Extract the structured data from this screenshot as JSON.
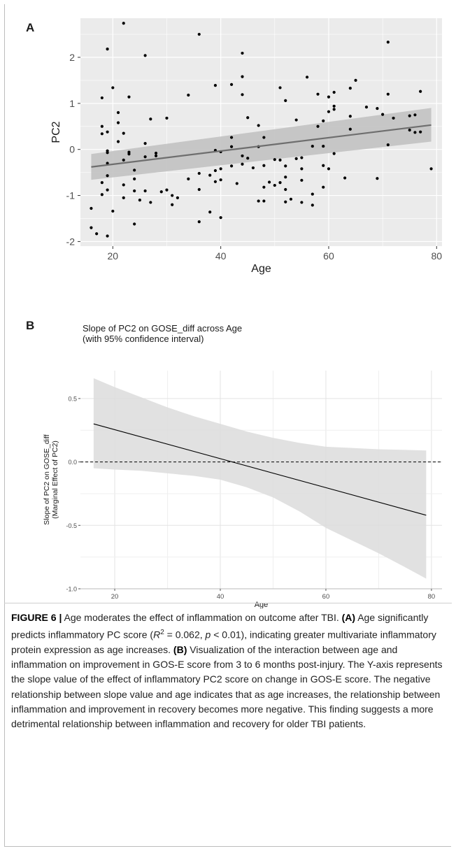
{
  "figure": {
    "panel_a": {
      "letter": "A"
    },
    "panel_b": {
      "letter": "B"
    }
  },
  "chart_data": [
    {
      "type": "scatter",
      "panel": "A",
      "title": "",
      "xlabel": "Age",
      "ylabel": "PC2",
      "xlim": [
        14,
        81
      ],
      "ylim": [
        -2.1,
        2.85
      ],
      "xticks": [
        20,
        40,
        60,
        80
      ],
      "yticks": [
        -2,
        -1,
        0,
        1,
        2
      ],
      "grid": true,
      "background": "#ebebeb",
      "fit": {
        "x": [
          16,
          79
        ],
        "y": [
          -0.38,
          0.53
        ],
        "ci_lower": [
          -0.66,
          0.17
        ],
        "ci_upper": [
          -0.1,
          0.9
        ]
      },
      "points": [
        [
          16,
          -1.28
        ],
        [
          16,
          -1.7
        ],
        [
          17,
          -1.83
        ],
        [
          18,
          0.5
        ],
        [
          18,
          0.34
        ],
        [
          18,
          -0.72
        ],
        [
          18,
          -0.98
        ],
        [
          18,
          1.12
        ],
        [
          19,
          0.38
        ],
        [
          19,
          -0.03
        ],
        [
          19,
          -0.07
        ],
        [
          19,
          -0.3
        ],
        [
          19,
          -0.57
        ],
        [
          19,
          -0.88
        ],
        [
          19,
          2.18
        ],
        [
          19,
          -1.88
        ],
        [
          20,
          1.34
        ],
        [
          20,
          -1.34
        ],
        [
          21,
          0.8
        ],
        [
          21,
          0.58
        ],
        [
          21,
          0.17
        ],
        [
          22,
          2.74
        ],
        [
          22,
          0.35
        ],
        [
          22,
          -0.23
        ],
        [
          22,
          -0.77
        ],
        [
          22,
          -1.05
        ],
        [
          23,
          1.14
        ],
        [
          23,
          -0.06
        ],
        [
          23,
          -0.1
        ],
        [
          24,
          -0.45
        ],
        [
          24,
          -0.64
        ],
        [
          24,
          -0.9
        ],
        [
          24,
          -1.62
        ],
        [
          25,
          -1.1
        ],
        [
          26,
          2.04
        ],
        [
          26,
          0.13
        ],
        [
          26,
          -0.16
        ],
        [
          26,
          -0.9
        ],
        [
          27,
          0.66
        ],
        [
          27,
          -1.15
        ],
        [
          28,
          -0.08
        ],
        [
          28,
          -0.14
        ],
        [
          29,
          -0.92
        ],
        [
          30,
          0.68
        ],
        [
          30,
          -0.88
        ],
        [
          31,
          -1.0
        ],
        [
          31,
          -1.2
        ],
        [
          32,
          -1.05
        ],
        [
          34,
          1.18
        ],
        [
          34,
          -0.64
        ],
        [
          36,
          2.5
        ],
        [
          36,
          -0.52
        ],
        [
          36,
          -0.87
        ],
        [
          36,
          -1.57
        ],
        [
          38,
          -0.56
        ],
        [
          38,
          -1.36
        ],
        [
          39,
          1.39
        ],
        [
          39,
          -0.02
        ],
        [
          39,
          -0.46
        ],
        [
          39,
          -0.7
        ],
        [
          40,
          -0.05
        ],
        [
          40,
          -0.42
        ],
        [
          40,
          -0.66
        ],
        [
          40,
          -1.48
        ],
        [
          42,
          1.41
        ],
        [
          42,
          0.26
        ],
        [
          42,
          0.06
        ],
        [
          42,
          -0.36
        ],
        [
          43,
          -0.74
        ],
        [
          44,
          2.09
        ],
        [
          44,
          1.58
        ],
        [
          44,
          1.19
        ],
        [
          44,
          -0.14
        ],
        [
          44,
          -0.32
        ],
        [
          45,
          0.69
        ],
        [
          45,
          -0.19
        ],
        [
          46,
          -0.4
        ],
        [
          47,
          0.52
        ],
        [
          47,
          0.06
        ],
        [
          47,
          -1.12
        ],
        [
          48,
          0.26
        ],
        [
          48,
          -0.35
        ],
        [
          48,
          -0.82
        ],
        [
          48,
          -1.12
        ],
        [
          49,
          -0.71
        ],
        [
          50,
          -0.22
        ],
        [
          50,
          -0.78
        ],
        [
          51,
          1.34
        ],
        [
          51,
          -0.23
        ],
        [
          51,
          -0.72
        ],
        [
          52,
          1.06
        ],
        [
          52,
          -0.36
        ],
        [
          52,
          -0.6
        ],
        [
          52,
          -0.87
        ],
        [
          52,
          -1.14
        ],
        [
          53,
          -1.08
        ],
        [
          54,
          0.64
        ],
        [
          54,
          -0.2
        ],
        [
          55,
          -0.18
        ],
        [
          55,
          -0.42
        ],
        [
          55,
          -0.67
        ],
        [
          55,
          -1.15
        ],
        [
          56,
          1.57
        ],
        [
          57,
          0.07
        ],
        [
          57,
          -0.97
        ],
        [
          57,
          -1.21
        ],
        [
          58,
          1.2
        ],
        [
          58,
          0.5
        ],
        [
          59,
          0.62
        ],
        [
          59,
          0.07
        ],
        [
          59,
          -0.35
        ],
        [
          59,
          -0.82
        ],
        [
          60,
          1.14
        ],
        [
          60,
          0.82
        ],
        [
          60,
          -0.42
        ],
        [
          61,
          1.24
        ],
        [
          61,
          0.94
        ],
        [
          61,
          0.87
        ],
        [
          61,
          -0.09
        ],
        [
          63,
          -0.62
        ],
        [
          64,
          1.33
        ],
        [
          64,
          0.72
        ],
        [
          64,
          0.44
        ],
        [
          65,
          1.5
        ],
        [
          67,
          0.92
        ],
        [
          69,
          0.89
        ],
        [
          69,
          -0.63
        ],
        [
          70,
          0.76
        ],
        [
          71,
          2.33
        ],
        [
          71,
          1.2
        ],
        [
          71,
          0.1
        ],
        [
          72,
          0.68
        ],
        [
          75,
          0.73
        ],
        [
          75,
          0.42
        ],
        [
          76,
          0.75
        ],
        [
          76,
          0.37
        ],
        [
          77,
          1.26
        ],
        [
          77,
          0.38
        ],
        [
          79,
          -0.42
        ]
      ]
    },
    {
      "type": "line",
      "panel": "B",
      "title": "Slope of PC2 on GOSE_diff across Age",
      "subtitle": "(with 95% confidence interval)",
      "xlabel": "Age",
      "ylabel": "Slope of PC2 on GOSE_diff",
      "ylabel2": "(Marginal Effect of PC2)",
      "xlim": [
        13.5,
        82
      ],
      "ylim": [
        -1.0,
        0.72
      ],
      "xticks": [
        20,
        40,
        60,
        80
      ],
      "yticks": [
        -1.0,
        -0.5,
        0.0,
        0.5
      ],
      "ytick_labels": [
        "-1.0",
        "-0.5",
        "0.0",
        "0.5"
      ],
      "grid": true,
      "reference_line": 0.0,
      "series": [
        {
          "x": [
            16,
            79
          ],
          "y": [
            0.3,
            -0.42
          ]
        }
      ],
      "ci": {
        "x": [
          16,
          20,
          25,
          30,
          35,
          40,
          45,
          50,
          55,
          60,
          65,
          70,
          75,
          79
        ],
        "upper": [
          0.66,
          0.59,
          0.51,
          0.43,
          0.36,
          0.3,
          0.24,
          0.19,
          0.15,
          0.12,
          0.11,
          0.1,
          0.095,
          0.09
        ],
        "lower": [
          -0.05,
          -0.06,
          -0.07,
          -0.09,
          -0.11,
          -0.14,
          -0.2,
          -0.28,
          -0.39,
          -0.52,
          -0.62,
          -0.72,
          -0.83,
          -0.92
        ]
      }
    }
  ],
  "caption": {
    "label": "FIGURE 6 |",
    "intro": " Age moderates the effect of inflammation on outcome after TBI. ",
    "a_ref": "(A)",
    "a_text_1": " Age significantly predicts inflammatory PC score (",
    "r_symbol": "R",
    "r_sup": "2",
    "a_text_2": " = 0.062, ",
    "p_symbol": "p",
    "a_text_3": " < 0.01), indicating greater multivariate inflammatory protein expression as age increases. ",
    "b_ref": "(B)",
    "b_text": " Visualization of the interaction between age and inflammation on improvement in GOS-E score from 3 to 6 months post-injury. The Y-axis represents the slope value of the effect of inflammatory PC2 score on change in GOS-E score. The negative relationship between slope value and age indicates that as age increases, the relationship between inflammation and improvement in recovery becomes more negative. This finding suggests a more detrimental relationship between inflammation and recovery for older TBI patients."
  }
}
